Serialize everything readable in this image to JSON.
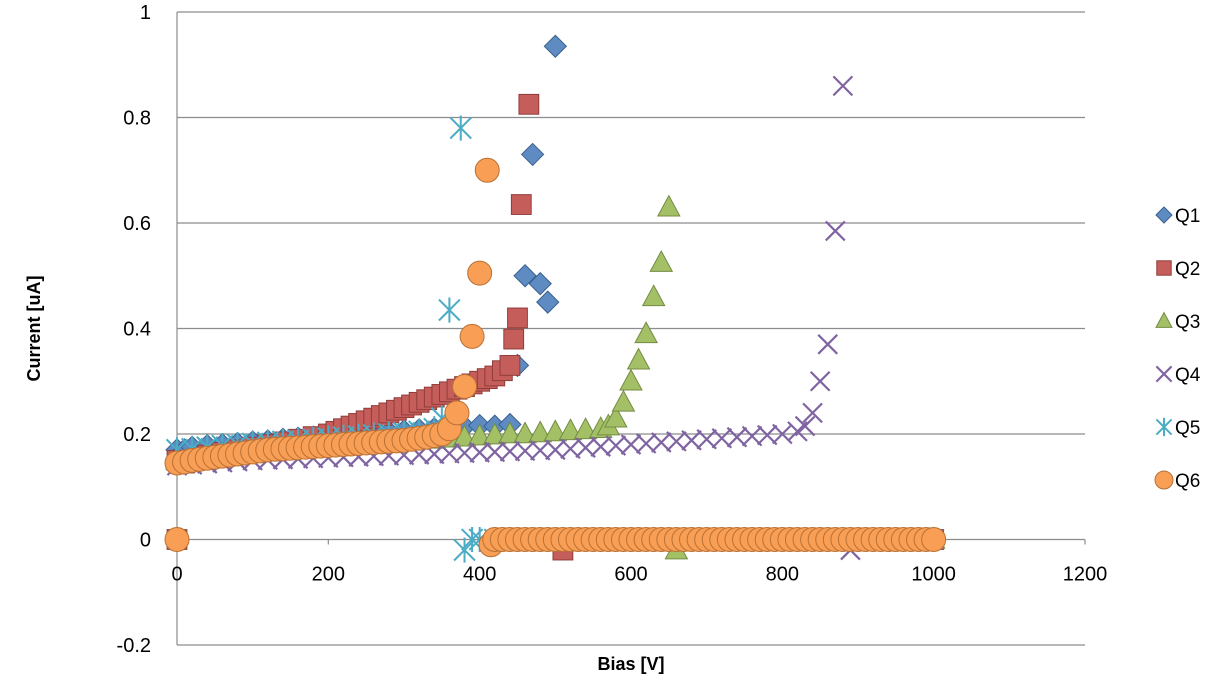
{
  "chart_data": {
    "type": "scatter",
    "title": "",
    "xlabel": "Bias [V]",
    "ylabel": "Current [uA]",
    "xlim": [
      0,
      1200
    ],
    "ylim": [
      -0.2,
      1
    ],
    "x_ticks": [
      "0",
      "200",
      "400",
      "600",
      "800",
      "1000",
      "1200"
    ],
    "y_ticks": [
      "-0.2",
      "0",
      "0.2",
      "0.4",
      "0.6",
      "0.8",
      "1"
    ],
    "grid": "horizontal major gridlines",
    "legend_position": "right",
    "series": [
      {
        "name": "Q1",
        "marker": "diamond",
        "color": "#4f81bd",
        "points": [
          [
            0,
            0
          ],
          [
            0,
            0.17
          ],
          [
            10,
            0.17
          ],
          [
            20,
            0.175
          ],
          [
            40,
            0.178
          ],
          [
            60,
            0.18
          ],
          [
            80,
            0.182
          ],
          [
            100,
            0.185
          ],
          [
            120,
            0.187
          ],
          [
            140,
            0.19
          ],
          [
            160,
            0.192
          ],
          [
            180,
            0.194
          ],
          [
            200,
            0.196
          ],
          [
            220,
            0.198
          ],
          [
            240,
            0.2
          ],
          [
            260,
            0.202
          ],
          [
            280,
            0.204
          ],
          [
            300,
            0.206
          ],
          [
            320,
            0.208
          ],
          [
            340,
            0.21
          ],
          [
            360,
            0.212
          ],
          [
            380,
            0.214
          ],
          [
            400,
            0.216
          ],
          [
            420,
            0.215
          ],
          [
            440,
            0.218
          ],
          [
            450,
            0.33
          ],
          [
            460,
            0.5
          ],
          [
            470,
            0.73
          ],
          [
            480,
            0.485
          ],
          [
            490,
            0.45
          ],
          [
            500,
            0.935
          ],
          [
            520,
            0
          ],
          [
            540,
            0
          ],
          [
            560,
            0
          ],
          [
            600,
            0
          ],
          [
            700,
            0
          ],
          [
            800,
            0
          ],
          [
            900,
            0
          ],
          [
            1000,
            0
          ]
        ]
      },
      {
        "name": "Q2",
        "marker": "square",
        "color": "#c0504d",
        "points": [
          [
            0,
            0
          ],
          [
            0,
            0.15
          ],
          [
            10,
            0.145
          ],
          [
            20,
            0.15
          ],
          [
            40,
            0.16
          ],
          [
            60,
            0.165
          ],
          [
            80,
            0.17
          ],
          [
            100,
            0.175
          ],
          [
            120,
            0.18
          ],
          [
            140,
            0.185
          ],
          [
            160,
            0.19
          ],
          [
            180,
            0.195
          ],
          [
            200,
            0.2
          ],
          [
            210,
            0.205
          ],
          [
            220,
            0.21
          ],
          [
            230,
            0.215
          ],
          [
            240,
            0.22
          ],
          [
            250,
            0.225
          ],
          [
            260,
            0.23
          ],
          [
            270,
            0.235
          ],
          [
            280,
            0.24
          ],
          [
            290,
            0.245
          ],
          [
            300,
            0.25
          ],
          [
            310,
            0.255
          ],
          [
            320,
            0.26
          ],
          [
            330,
            0.265
          ],
          [
            340,
            0.27
          ],
          [
            350,
            0.275
          ],
          [
            360,
            0.28
          ],
          [
            370,
            0.285
          ],
          [
            380,
            0.29
          ],
          [
            390,
            0.295
          ],
          [
            400,
            0.3
          ],
          [
            410,
            0.305
          ],
          [
            420,
            0.31
          ],
          [
            430,
            0.32
          ],
          [
            440,
            0.33
          ],
          [
            445,
            0.38
          ],
          [
            450,
            0.42
          ],
          [
            455,
            0.635
          ],
          [
            465,
            0.825
          ],
          [
            510,
            -0.02
          ],
          [
            600,
            0
          ],
          [
            700,
            0
          ],
          [
            800,
            0
          ],
          [
            900,
            0
          ],
          [
            1000,
            0
          ]
        ]
      },
      {
        "name": "Q3",
        "marker": "triangle",
        "color": "#9bbb59",
        "points": [
          [
            0,
            0.15
          ],
          [
            20,
            0.155
          ],
          [
            40,
            0.16
          ],
          [
            60,
            0.162
          ],
          [
            80,
            0.164
          ],
          [
            100,
            0.166
          ],
          [
            120,
            0.168
          ],
          [
            140,
            0.17
          ],
          [
            160,
            0.172
          ],
          [
            180,
            0.174
          ],
          [
            200,
            0.176
          ],
          [
            220,
            0.178
          ],
          [
            240,
            0.18
          ],
          [
            260,
            0.182
          ],
          [
            280,
            0.184
          ],
          [
            300,
            0.186
          ],
          [
            320,
            0.188
          ],
          [
            340,
            0.19
          ],
          [
            360,
            0.192
          ],
          [
            380,
            0.194
          ],
          [
            400,
            0.196
          ],
          [
            420,
            0.198
          ],
          [
            440,
            0.2
          ],
          [
            460,
            0.2
          ],
          [
            480,
            0.202
          ],
          [
            500,
            0.204
          ],
          [
            520,
            0.206
          ],
          [
            540,
            0.208
          ],
          [
            560,
            0.21
          ],
          [
            570,
            0.215
          ],
          [
            580,
            0.23
          ],
          [
            590,
            0.26
          ],
          [
            600,
            0.3
          ],
          [
            610,
            0.34
          ],
          [
            620,
            0.39
          ],
          [
            630,
            0.46
          ],
          [
            640,
            0.525
          ],
          [
            650,
            0.63
          ],
          [
            660,
            -0.02
          ],
          [
            700,
            0
          ],
          [
            800,
            0
          ],
          [
            900,
            0
          ],
          [
            1000,
            0
          ]
        ]
      },
      {
        "name": "Q4",
        "marker": "x",
        "color": "#8064a2",
        "points": [
          [
            0,
            0.14
          ],
          [
            20,
            0.142
          ],
          [
            40,
            0.144
          ],
          [
            60,
            0.146
          ],
          [
            80,
            0.148
          ],
          [
            100,
            0.15
          ],
          [
            120,
            0.151
          ],
          [
            140,
            0.152
          ],
          [
            160,
            0.153
          ],
          [
            180,
            0.154
          ],
          [
            200,
            0.155
          ],
          [
            220,
            0.156
          ],
          [
            240,
            0.157
          ],
          [
            260,
            0.158
          ],
          [
            280,
            0.159
          ],
          [
            300,
            0.16
          ],
          [
            320,
            0.161
          ],
          [
            340,
            0.162
          ],
          [
            360,
            0.163
          ],
          [
            380,
            0.164
          ],
          [
            400,
            0.165
          ],
          [
            420,
            0.166
          ],
          [
            440,
            0.167
          ],
          [
            460,
            0.168
          ],
          [
            480,
            0.169
          ],
          [
            500,
            0.17
          ],
          [
            520,
            0.172
          ],
          [
            540,
            0.174
          ],
          [
            560,
            0.176
          ],
          [
            580,
            0.178
          ],
          [
            600,
            0.18
          ],
          [
            620,
            0.182
          ],
          [
            640,
            0.184
          ],
          [
            660,
            0.186
          ],
          [
            680,
            0.188
          ],
          [
            700,
            0.19
          ],
          [
            720,
            0.192
          ],
          [
            740,
            0.194
          ],
          [
            760,
            0.196
          ],
          [
            780,
            0.198
          ],
          [
            800,
            0.2
          ],
          [
            820,
            0.205
          ],
          [
            830,
            0.215
          ],
          [
            840,
            0.24
          ],
          [
            850,
            0.3
          ],
          [
            860,
            0.37
          ],
          [
            870,
            0.585
          ],
          [
            880,
            0.86
          ],
          [
            890,
            -0.02
          ],
          [
            900,
            0
          ],
          [
            1000,
            0
          ]
        ]
      },
      {
        "name": "Q5",
        "marker": "star",
        "color": "#4bacc6",
        "points": [
          [
            0,
            0.17
          ],
          [
            20,
            0.172
          ],
          [
            40,
            0.175
          ],
          [
            60,
            0.178
          ],
          [
            80,
            0.18
          ],
          [
            100,
            0.182
          ],
          [
            120,
            0.184
          ],
          [
            140,
            0.186
          ],
          [
            160,
            0.188
          ],
          [
            180,
            0.19
          ],
          [
            200,
            0.192
          ],
          [
            220,
            0.194
          ],
          [
            240,
            0.196
          ],
          [
            260,
            0.198
          ],
          [
            280,
            0.2
          ],
          [
            300,
            0.202
          ],
          [
            320,
            0.205
          ],
          [
            340,
            0.21
          ],
          [
            350,
            0.23
          ],
          [
            360,
            0.435
          ],
          [
            375,
            0.78
          ],
          [
            380,
            -0.02
          ],
          [
            390,
            0
          ],
          [
            400,
            0
          ],
          [
            420,
            0
          ]
        ]
      },
      {
        "name": "Q6",
        "marker": "circle",
        "color": "#f79646",
        "points": [
          [
            0,
            0
          ],
          [
            0,
            0.145
          ],
          [
            10,
            0.147
          ],
          [
            20,
            0.15
          ],
          [
            30,
            0.152
          ],
          [
            40,
            0.154
          ],
          [
            50,
            0.156
          ],
          [
            60,
            0.158
          ],
          [
            70,
            0.16
          ],
          [
            80,
            0.162
          ],
          [
            90,
            0.164
          ],
          [
            100,
            0.166
          ],
          [
            110,
            0.168
          ],
          [
            120,
            0.17
          ],
          [
            130,
            0.171
          ],
          [
            140,
            0.172
          ],
          [
            150,
            0.173
          ],
          [
            160,
            0.174
          ],
          [
            170,
            0.175
          ],
          [
            180,
            0.176
          ],
          [
            190,
            0.177
          ],
          [
            200,
            0.178
          ],
          [
            210,
            0.179
          ],
          [
            220,
            0.18
          ],
          [
            230,
            0.181
          ],
          [
            240,
            0.182
          ],
          [
            250,
            0.183
          ],
          [
            260,
            0.184
          ],
          [
            270,
            0.185
          ],
          [
            280,
            0.186
          ],
          [
            290,
            0.187
          ],
          [
            300,
            0.188
          ],
          [
            310,
            0.19
          ],
          [
            320,
            0.192
          ],
          [
            330,
            0.194
          ],
          [
            340,
            0.197
          ],
          [
            350,
            0.2
          ],
          [
            360,
            0.21
          ],
          [
            370,
            0.24
          ],
          [
            380,
            0.29
          ],
          [
            390,
            0.385
          ],
          [
            400,
            0.505
          ],
          [
            410,
            0.7
          ],
          [
            415,
            -0.01
          ],
          [
            420,
            0
          ],
          [
            430,
            0
          ],
          [
            440,
            0
          ],
          [
            450,
            0
          ],
          [
            460,
            0
          ],
          [
            470,
            0
          ],
          [
            480,
            0
          ],
          [
            490,
            0
          ],
          [
            500,
            0
          ],
          [
            510,
            0
          ],
          [
            520,
            0
          ],
          [
            530,
            0
          ],
          [
            540,
            0
          ],
          [
            550,
            0
          ],
          [
            560,
            0
          ],
          [
            570,
            0
          ],
          [
            580,
            0
          ],
          [
            590,
            0
          ],
          [
            600,
            0
          ],
          [
            610,
            0
          ],
          [
            620,
            0
          ],
          [
            630,
            0
          ],
          [
            640,
            0
          ],
          [
            650,
            0
          ],
          [
            660,
            0
          ],
          [
            670,
            0
          ],
          [
            680,
            0
          ],
          [
            690,
            0
          ],
          [
            700,
            0
          ],
          [
            710,
            0
          ],
          [
            720,
            0
          ],
          [
            730,
            0
          ],
          [
            740,
            0
          ],
          [
            750,
            0
          ],
          [
            760,
            0
          ],
          [
            770,
            0
          ],
          [
            780,
            0
          ],
          [
            790,
            0
          ],
          [
            800,
            0
          ],
          [
            810,
            0
          ],
          [
            820,
            0
          ],
          [
            830,
            0
          ],
          [
            840,
            0
          ],
          [
            850,
            0
          ],
          [
            860,
            0
          ],
          [
            870,
            0
          ],
          [
            880,
            0
          ],
          [
            890,
            0
          ],
          [
            900,
            0
          ],
          [
            910,
            0
          ],
          [
            920,
            0
          ],
          [
            930,
            0
          ],
          [
            940,
            0
          ],
          [
            950,
            0
          ],
          [
            960,
            0
          ],
          [
            970,
            0
          ],
          [
            980,
            0
          ],
          [
            990,
            0
          ],
          [
            1000,
            0
          ]
        ]
      }
    ]
  }
}
